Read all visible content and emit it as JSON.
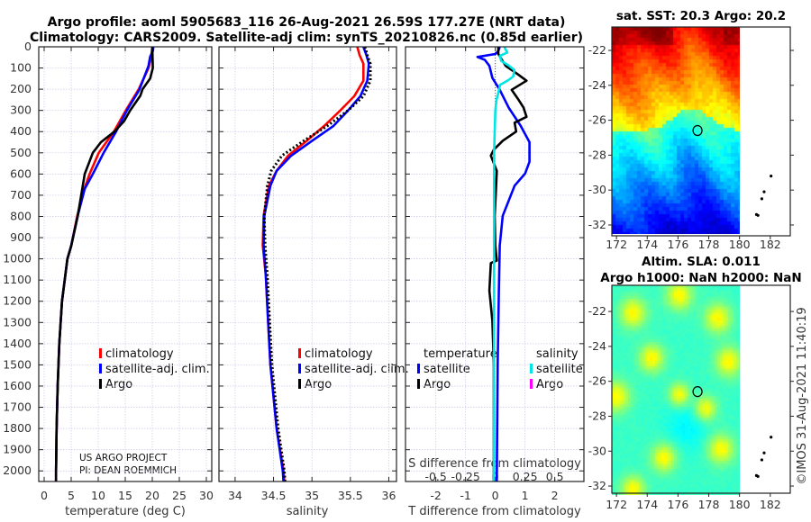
{
  "title": {
    "line1": "Argo profile: aoml 5905683_116 26-Aug-2021 26.59S 177.27E (NRT data)",
    "line2": "Climatology: CARS2009. Satellite-adj clim: synTS_20210826.nc (0.85d earlier)"
  },
  "credit": {
    "line1": "US ARGO PROJECT",
    "line2": "PI: DEAN ROEMMICH"
  },
  "stamp": "©IMOS 31-Aug-2021 11:40:19",
  "colors": {
    "climatology": "#ff0000",
    "satellite": "#0000ff",
    "argo": "#000000",
    "sal_satellite": "#00e5e5",
    "sal_argo": "#ff00ff"
  },
  "chart_data": [
    {
      "type": "line",
      "xlabel": "temperature (deg C)",
      "ylabel": "",
      "xlim": [
        -1,
        31
      ],
      "ylim": [
        2050,
        0
      ],
      "xticks": [
        "0",
        "5",
        "10",
        "15",
        "20",
        "25",
        "30"
      ],
      "yticks": [
        "0",
        "100",
        "200",
        "300",
        "400",
        "500",
        "600",
        "700",
        "800",
        "900",
        "1000",
        "1100",
        "1200",
        "1300",
        "1400",
        "1500",
        "1600",
        "1700",
        "1800",
        "1900",
        "2000"
      ],
      "legend": [
        "climatology",
        "satellite-adj. clim.",
        "Argo"
      ],
      "series": [
        {
          "name": "climatology",
          "color": "#ff0000",
          "points": [
            [
              20.0,
              0
            ],
            [
              19.8,
              50
            ],
            [
              19.3,
              100
            ],
            [
              17.5,
              200
            ],
            [
              15.1,
              300
            ],
            [
              12.9,
              400
            ],
            [
              10.1,
              500
            ],
            [
              8.4,
              600
            ],
            [
              7.3,
              680
            ],
            [
              6.1,
              800
            ],
            [
              5.0,
              940
            ],
            [
              4.3,
              1000
            ],
            [
              3.8,
              1100
            ],
            [
              3.3,
              1200
            ],
            [
              2.8,
              1400
            ],
            [
              2.5,
              1600
            ],
            [
              2.3,
              1800
            ],
            [
              2.2,
              2000
            ],
            [
              2.2,
              2050
            ]
          ]
        },
        {
          "name": "satellite-adj. clim.",
          "color": "#0000ff",
          "points": [
            [
              20.2,
              0
            ],
            [
              20.1,
              20
            ],
            [
              19.6,
              47
            ],
            [
              19.3,
              90
            ],
            [
              17.6,
              203
            ],
            [
              15.3,
              300
            ],
            [
              13.3,
              400
            ],
            [
              11.0,
              500
            ],
            [
              9.0,
              600
            ],
            [
              7.5,
              670
            ],
            [
              6.2,
              797
            ],
            [
              5.0,
              937
            ],
            [
              4.3,
              1000
            ],
            [
              3.8,
              1100
            ],
            [
              3.3,
              1200
            ],
            [
              2.8,
              1400
            ],
            [
              2.5,
              1600
            ],
            [
              2.3,
              1800
            ],
            [
              2.2,
              2000
            ],
            [
              2.2,
              2050
            ]
          ]
        },
        {
          "name": "Argo",
          "color": "#000000",
          "points": [
            [
              20.0,
              0
            ],
            [
              20.1,
              100
            ],
            [
              19.6,
              150
            ],
            [
              18.2,
              200
            ],
            [
              17.8,
              230
            ],
            [
              15.9,
              300
            ],
            [
              14.8,
              350
            ],
            [
              13.0,
              400
            ],
            [
              10.5,
              450
            ],
            [
              9.0,
              500
            ],
            [
              7.5,
              600
            ],
            [
              6.2,
              800
            ],
            [
              5.0,
              940
            ],
            [
              4.3,
              1000
            ],
            [
              3.8,
              1100
            ],
            [
              3.3,
              1200
            ],
            [
              2.8,
              1400
            ],
            [
              2.5,
              1600
            ],
            [
              2.3,
              1800
            ],
            [
              2.2,
              2000
            ],
            [
              2.2,
              2050
            ]
          ]
        }
      ]
    },
    {
      "type": "line",
      "xlabel": "salinity",
      "xlim": [
        33.79,
        36.1
      ],
      "ylim": [
        2050,
        0
      ],
      "xticks": [
        "34",
        "34.5",
        "35",
        "35.5",
        "36"
      ],
      "legend": [
        "climatology",
        "satellite-adj. clim.",
        "Argo"
      ],
      "series": [
        {
          "name": "climatology",
          "color": "#ff0000",
          "points": [
            [
              35.59,
              0
            ],
            [
              35.62,
              40
            ],
            [
              35.67,
              80
            ],
            [
              35.67,
              160
            ],
            [
              35.55,
              233
            ],
            [
              35.37,
              300
            ],
            [
              35.16,
              373
            ],
            [
              34.93,
              444
            ],
            [
              34.69,
              513
            ],
            [
              34.54,
              585
            ],
            [
              34.44,
              655
            ],
            [
              34.37,
              797
            ],
            [
              34.36,
              937
            ],
            [
              34.4,
              1080
            ],
            [
              34.43,
              1300
            ],
            [
              34.46,
              1500
            ],
            [
              34.54,
              1800
            ],
            [
              34.63,
              2000
            ],
            [
              34.64,
              2050
            ]
          ]
        },
        {
          "name": "satellite-adj. clim.",
          "color": "#0000ff",
          "points": [
            [
              35.67,
              0
            ],
            [
              35.71,
              40
            ],
            [
              35.74,
              80
            ],
            [
              35.72,
              160
            ],
            [
              35.63,
              233
            ],
            [
              35.47,
              300
            ],
            [
              35.28,
              373
            ],
            [
              35.0,
              444
            ],
            [
              34.73,
              513
            ],
            [
              34.54,
              585
            ],
            [
              34.46,
              655
            ],
            [
              34.38,
              797
            ],
            [
              34.37,
              937
            ],
            [
              34.4,
              1080
            ],
            [
              34.43,
              1300
            ],
            [
              34.46,
              1500
            ],
            [
              34.54,
              1800
            ],
            [
              34.62,
              2000
            ],
            [
              34.63,
              2050
            ]
          ]
        },
        {
          "name": "Argo",
          "color": "#000000",
          "dashed": true,
          "points": [
            [
              35.69,
              0
            ],
            [
              35.72,
              40
            ],
            [
              35.76,
              80
            ],
            [
              35.76,
              160
            ],
            [
              35.67,
              233
            ],
            [
              35.47,
              300
            ],
            [
              35.2,
              373
            ],
            [
              34.89,
              444
            ],
            [
              34.61,
              513
            ],
            [
              34.47,
              585
            ],
            [
              34.42,
              655
            ],
            [
              34.38,
              797
            ],
            [
              34.39,
              937
            ],
            [
              34.42,
              1080
            ],
            [
              34.45,
              1300
            ],
            [
              34.48,
              1500
            ],
            [
              34.56,
              1800
            ],
            [
              34.64,
              2000
            ],
            [
              34.65,
              2050
            ]
          ]
        }
      ]
    },
    {
      "type": "line",
      "xlabel": "T difference from climatology",
      "x2label": "S difference from climatology",
      "xlim": [
        -3.02,
        2.98
      ],
      "ylim": [
        2050,
        0
      ],
      "xticks": [
        "-2",
        "-1",
        "0",
        "1",
        "2"
      ],
      "x2ticks": [
        "-0.5",
        "-0.25",
        "0",
        "0.25",
        "0.5"
      ],
      "s_to_t_scale": 4,
      "legend": {
        "temperature_title": "temperature",
        "temperature": [
          "satellite",
          "Argo"
        ],
        "salinity_title": "salinity",
        "salinity": [
          "satellite",
          "Argo"
        ]
      },
      "series": [
        {
          "name": "temperature satellite",
          "color": "#0000ff",
          "points": [
            [
              0.15,
              0
            ],
            [
              0.1,
              20
            ],
            [
              0.0,
              34
            ],
            [
              -0.6,
              48
            ],
            [
              -0.35,
              62
            ],
            [
              -0.2,
              90
            ],
            [
              -0.1,
              147
            ],
            [
              0.15,
              203
            ],
            [
              0.45,
              287
            ],
            [
              0.85,
              372
            ],
            [
              1.15,
              450
            ],
            [
              1.15,
              542
            ],
            [
              1.0,
              598
            ],
            [
              0.65,
              655
            ],
            [
              0.25,
              797
            ],
            [
              0.15,
              937
            ],
            [
              0.12,
              1150
            ],
            [
              0.08,
              1500
            ],
            [
              0.05,
              2050
            ]
          ]
        },
        {
          "name": "temperature Argo",
          "color": "#000000",
          "points": [
            [
              0.1,
              0
            ],
            [
              0.1,
              34
            ],
            [
              0.35,
              90
            ],
            [
              0.76,
              130
            ],
            [
              1.05,
              160
            ],
            [
              0.55,
              203
            ],
            [
              0.76,
              245
            ],
            [
              0.95,
              287
            ],
            [
              1.05,
              330
            ],
            [
              0.65,
              358
            ],
            [
              0.7,
              400
            ],
            [
              0.25,
              443
            ],
            [
              -0.05,
              485
            ],
            [
              -0.15,
              513
            ],
            [
              0.05,
              585
            ],
            [
              0.02,
              683
            ],
            [
              -0.02,
              797
            ],
            [
              0.0,
              937
            ],
            [
              0.05,
              1008
            ],
            [
              -0.15,
              1020
            ],
            [
              -0.2,
              1150
            ],
            [
              -0.1,
              1292
            ],
            [
              -0.05,
              1500
            ],
            [
              -0.05,
              1800
            ],
            [
              -0.05,
              2050
            ]
          ]
        },
        {
          "name": "salinity satellite",
          "color": "#00e5e5",
          "unit": "S",
          "points": [
            [
              0.075,
              0
            ],
            [
              0.1,
              27
            ],
            [
              0.038,
              43
            ],
            [
              0.05,
              67
            ],
            [
              0.11,
              87
            ],
            [
              0.16,
              110
            ],
            [
              0.15,
              140
            ],
            [
              0.11,
              157
            ],
            [
              0.04,
              180
            ],
            [
              0.025,
              217
            ],
            [
              0.01,
              250
            ],
            [
              0.0,
              300
            ],
            [
              -0.01,
              500
            ],
            [
              -0.012,
              2050
            ]
          ]
        }
      ]
    },
    {
      "type": "heatmap",
      "title": "sat. SST: 20.3 Argo: 20.2",
      "xlim": [
        171.7,
        183.3
      ],
      "ylim": [
        -32.62,
        -20.66
      ],
      "xticks": [
        "172",
        "174",
        "176",
        "178",
        "180",
        "182"
      ],
      "yticks": [
        "-22",
        "-24",
        "-26",
        "-28",
        "-30",
        "-32"
      ],
      "profile_location": [
        177.27,
        -26.59
      ]
    },
    {
      "type": "heatmap",
      "title": "Altim. SLA: 0.011",
      "subtitle": "Argo h1000: NaN h2000: NaN",
      "xlim": [
        171.7,
        183.3
      ],
      "ylim": [
        -32.41,
        -20.5
      ],
      "xticks": [
        "172",
        "174",
        "176",
        "178",
        "180",
        "182"
      ],
      "yticks": [
        "-22",
        "-24",
        "-26",
        "-28",
        "-30",
        "-32"
      ],
      "profile_location": [
        177.27,
        -26.59
      ]
    }
  ]
}
